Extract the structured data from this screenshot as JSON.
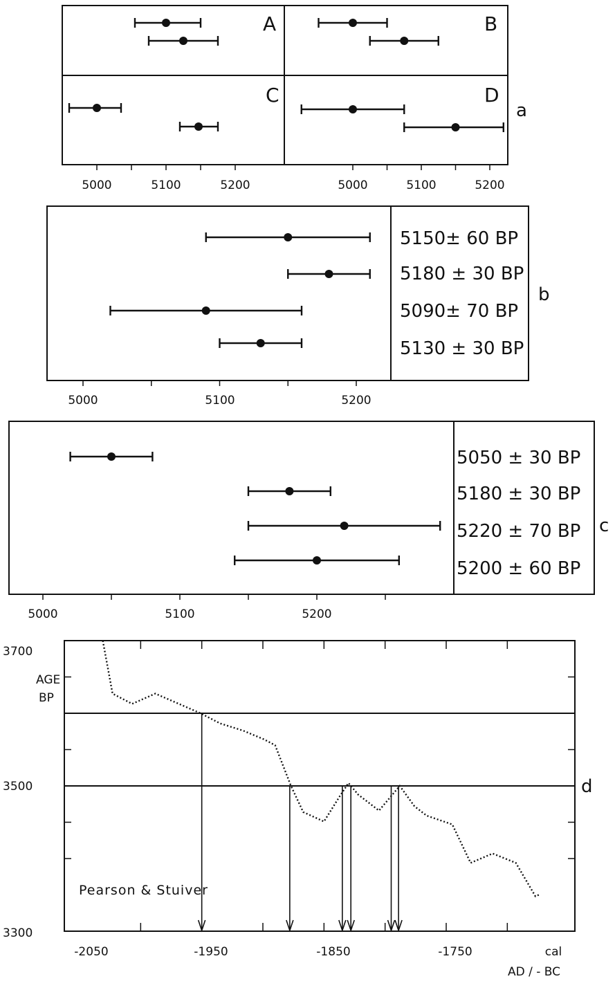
{
  "chart_data": [
    {
      "type": "scatter",
      "title": "",
      "panel_letter": "a",
      "subpanels": [
        {
          "label": "A",
          "points": [
            {
              "x": 5100,
              "xmin": 5055,
              "xmax": 5150
            },
            {
              "x": 5125,
              "xmin": 5075,
              "xmax": 5175
            }
          ]
        },
        {
          "label": "B",
          "points": [
            {
              "x": 5000,
              "xmin": 4950,
              "xmax": 5050
            },
            {
              "x": 5075,
              "xmin": 5025,
              "xmax": 5125
            }
          ]
        },
        {
          "label": "C",
          "points": [
            {
              "x": 5000,
              "xmin": 4960,
              "xmax": 5035
            },
            {
              "x": 5147,
              "xmin": 5120,
              "xmax": 5175
            }
          ]
        },
        {
          "label": "D",
          "points": [
            {
              "x": 5000,
              "xmin": 4925,
              "xmax": 5075
            },
            {
              "x": 5150,
              "xmin": 5075,
              "xmax": 5220
            }
          ]
        }
      ],
      "xticks_left": [
        "5000",
        "5100",
        "5200"
      ],
      "xticks_right": [
        "5000",
        "5100",
        "5200"
      ],
      "xlim_left": [
        4950,
        5270
      ],
      "xlim_right": [
        4925,
        5225
      ]
    },
    {
      "type": "scatter",
      "panel_letter": "b",
      "labels": [
        "5150± 60  BP",
        "5180 ± 30 BP",
        "5090± 70  BP",
        "5130 ± 30 BP"
      ],
      "points": [
        {
          "x": 5150,
          "xmin": 5090,
          "xmax": 5210
        },
        {
          "x": 5180,
          "xmin": 5150,
          "xmax": 5210
        },
        {
          "x": 5090,
          "xmin": 5020,
          "xmax": 5160
        },
        {
          "x": 5130,
          "xmin": 5100,
          "xmax": 5160
        }
      ],
      "xticks": [
        "5000",
        "5100",
        "5200"
      ],
      "xlim": [
        4975,
        5225
      ]
    },
    {
      "type": "scatter",
      "panel_letter": "c",
      "labels": [
        "5050 ± 30 BP",
        "5180 ± 30 BP",
        "5220 ± 70 BP",
        "5200 ± 60 BP"
      ],
      "points": [
        {
          "x": 5050,
          "xmin": 5020,
          "xmax": 5080
        },
        {
          "x": 5180,
          "xmin": 5150,
          "xmax": 5210
        },
        {
          "x": 5220,
          "xmin": 5150,
          "xmax": 5290
        },
        {
          "x": 5200,
          "xmin": 5140,
          "xmax": 5260
        }
      ],
      "xticks": [
        "5000",
        "5100",
        "5200"
      ],
      "xlim": [
        4975,
        5300
      ]
    },
    {
      "type": "line",
      "panel_letter": "d",
      "ylabel": "AGE\nBP",
      "yticks": [
        "3700",
        "3500",
        "3300"
      ],
      "xticks": [
        "-2050",
        "-1950",
        "-1850",
        "-1750"
      ],
      "xlabel_1": "cal",
      "xlabel_2": "AD / - BC",
      "xlim": [
        -2060,
        -1690
      ],
      "ylim": [
        3300,
        3700
      ],
      "annotation": "Pearson & Stuiver",
      "series": [
        {
          "x": [
            -2031,
            -2023,
            -2007,
            -1988,
            -1951,
            -1935,
            -1916,
            -1899,
            -1890,
            -1877,
            -1867,
            -1850,
            -1837,
            -1830,
            -1822,
            -1805,
            -1788,
            -1776,
            -1766,
            -1745,
            -1730,
            -1712,
            -1693,
            -1677,
            -1673
          ],
          "y": [
            3700,
            3627,
            3613,
            3627,
            3600,
            3586,
            3576,
            3564,
            3556,
            3500,
            3464,
            3451,
            3486,
            3504,
            3488,
            3466,
            3500,
            3472,
            3459,
            3447,
            3394,
            3407,
            3394,
            3348,
            3351
          ]
        }
      ],
      "horizontal_lines": [
        3600,
        3500
      ],
      "arrows_x": [
        -1950,
        -1878,
        -1835,
        -1828,
        -1795,
        -1789
      ]
    }
  ]
}
